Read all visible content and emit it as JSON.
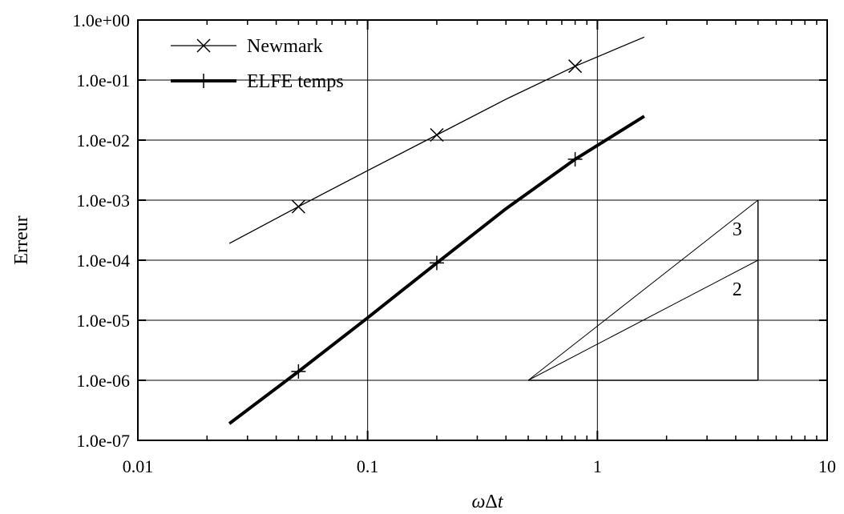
{
  "chart_data": {
    "type": "line",
    "xscale": "log",
    "yscale": "log",
    "xlim": [
      0.01,
      10
    ],
    "ylim": [
      1e-07,
      1
    ],
    "grid": true,
    "legend_position": "top-left",
    "ylabel": "Erreur",
    "xlabel_parts": {
      "omega": "ω",
      "delta": "Δ",
      "t": "t"
    },
    "x_ticks": [
      {
        "value": 0.01,
        "label": "0.01"
      },
      {
        "value": 0.1,
        "label": "0.1"
      },
      {
        "value": 1,
        "label": "1"
      },
      {
        "value": 10,
        "label": "10"
      }
    ],
    "y_ticks": [
      {
        "value": 1,
        "label": "1.0e+00"
      },
      {
        "value": 0.1,
        "label": "1.0e-01"
      },
      {
        "value": 0.01,
        "label": "1.0e-02"
      },
      {
        "value": 0.001,
        "label": "1.0e-03"
      },
      {
        "value": 0.0001,
        "label": "1.0e-04"
      },
      {
        "value": 1e-05,
        "label": "1.0e-05"
      },
      {
        "value": 1e-06,
        "label": "1.0e-06"
      },
      {
        "value": 1e-07,
        "label": "1.0e-07"
      }
    ],
    "series": [
      {
        "name": "Newmark",
        "marker": "x",
        "line_style": "thin",
        "x": [
          0.025,
          0.05,
          0.1,
          0.2,
          0.4,
          0.8,
          1.6
        ],
        "y": [
          0.00019,
          0.00078,
          0.0031,
          0.0122,
          0.048,
          0.17,
          0.52
        ],
        "marker_x": [
          0.05,
          0.2,
          0.8
        ],
        "marker_y": [
          0.00078,
          0.0122,
          0.17
        ]
      },
      {
        "name": "ELFE temps",
        "marker": "+",
        "line_style": "thick",
        "x": [
          0.025,
          0.05,
          0.1,
          0.2,
          0.4,
          0.8,
          1.6
        ],
        "y": [
          1.9e-07,
          1.4e-06,
          1.1e-05,
          9e-05,
          0.00072,
          0.0048,
          0.025
        ],
        "marker_x": [
          0.05,
          0.2,
          0.8
        ],
        "marker_y": [
          1.4e-06,
          9e-05,
          0.0048
        ]
      }
    ],
    "slope_triangle": {
      "x_start": 0.5,
      "x_end": 5,
      "y_base": 1e-06,
      "y_top_slope3": 0.001,
      "y_top_slope2": 0.0001,
      "label_slope3": "3",
      "label_slope2": "2"
    }
  }
}
